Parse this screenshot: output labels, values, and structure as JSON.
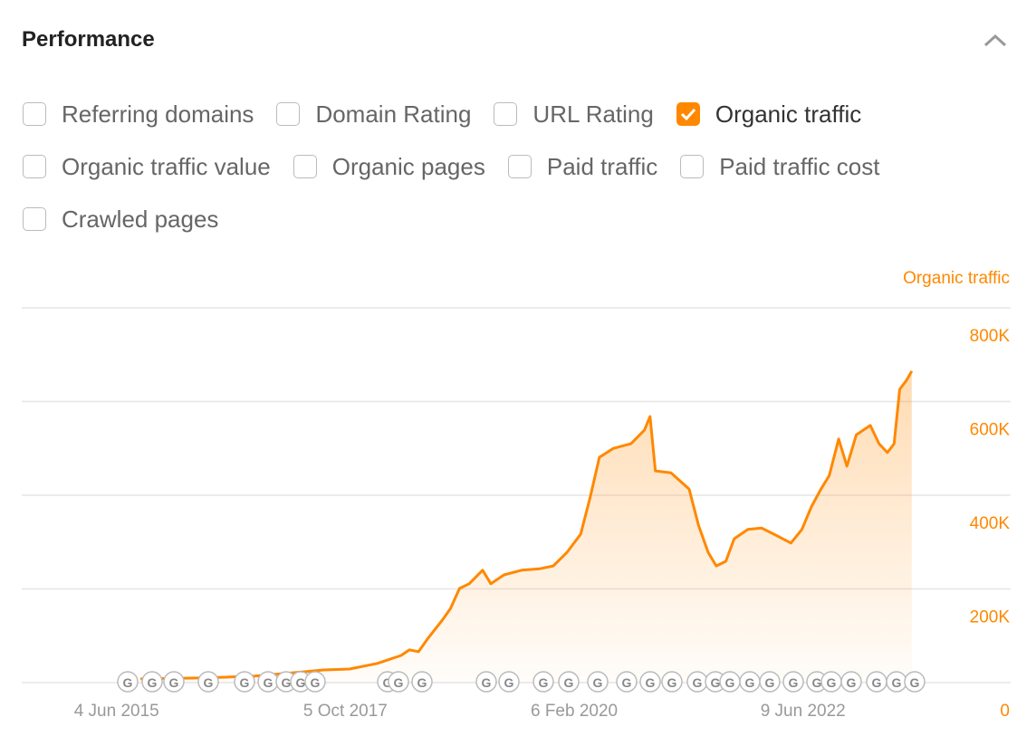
{
  "header": {
    "title": "Performance"
  },
  "checkboxes": [
    {
      "label": "Referring domains",
      "checked": false
    },
    {
      "label": "Domain Rating",
      "checked": false
    },
    {
      "label": "URL Rating",
      "checked": false
    },
    {
      "label": "Organic traffic",
      "checked": true
    },
    {
      "label": "Organic traffic value",
      "checked": false
    },
    {
      "label": "Organic pages",
      "checked": false
    },
    {
      "label": "Paid traffic",
      "checked": false
    },
    {
      "label": "Paid traffic cost",
      "checked": false
    },
    {
      "label": "Crawled pages",
      "checked": false
    }
  ],
  "update_marker_label": "G",
  "chart_data": {
    "type": "line",
    "y_axis_label": "Organic traffic",
    "color": "#ff8800",
    "grid": true,
    "x": [
      "2015-09-01",
      "2016-05-01",
      "2016-11-01",
      "2017-05-01",
      "2017-07-15",
      "2017-10-20",
      "2018-02-01",
      "2018-05-01",
      "2018-06-01",
      "2018-07-05",
      "2018-08-10",
      "2018-10-01",
      "2018-11-01",
      "2018-12-05",
      "2019-01-10",
      "2019-03-01",
      "2019-04-01",
      "2019-05-20",
      "2019-07-25",
      "2019-10-01",
      "2019-11-20",
      "2020-01-10",
      "2020-03-01",
      "2020-04-05",
      "2020-05-10",
      "2020-07-01",
      "2020-09-05",
      "2020-10-25",
      "2020-11-15",
      "2020-12-05",
      "2021-02-01",
      "2021-04-10",
      "2021-05-15",
      "2021-06-20",
      "2021-07-20",
      "2021-08-25",
      "2021-09-25",
      "2021-11-15",
      "2022-01-05",
      "2022-02-20",
      "2022-04-25",
      "2022-06-05",
      "2022-07-10",
      "2022-08-15",
      "2022-09-15",
      "2022-10-20",
      "2022-11-20",
      "2022-12-25",
      "2023-02-15",
      "2023-03-20",
      "2023-04-20",
      "2023-05-15",
      "2023-06-05",
      "2023-06-30",
      "2023-07-20"
    ],
    "series": [
      {
        "name": "Organic traffic",
        "color": "#ff8800",
        "values": [
          8000,
          10000,
          14000,
          23000,
          27000,
          29000,
          41000,
          58000,
          70000,
          66000,
          95000,
          133000,
          158000,
          201000,
          211000,
          240000,
          211000,
          230000,
          240000,
          243000,
          249000,
          278000,
          317000,
          394000,
          481000,
          500000,
          510000,
          539000,
          568000,
          452000,
          448000,
          413000,
          336000,
          278000,
          249000,
          259000,
          307000,
          327000,
          330000,
          317000,
          298000,
          327000,
          375000,
          413000,
          442000,
          520000,
          462000,
          529000,
          549000,
          510000,
          491000,
          510000,
          626000,
          645000,
          665000
        ]
      }
    ],
    "xlim": [
      "2014-06-15",
      "2024-07-23"
    ],
    "xticks": [
      {
        "value": "2015-06-04",
        "label": "4 Jun 2015"
      },
      {
        "value": "2017-10-05",
        "label": "5 Oct 2017"
      },
      {
        "value": "2020-02-06",
        "label": "6 Feb 2020"
      },
      {
        "value": "2022-06-09",
        "label": "9 Jun 2022"
      }
    ],
    "ylim": [
      0,
      800000
    ],
    "yticks": [
      0,
      {
        "value": 200000,
        "label": "200K"
      },
      {
        "value": 400000,
        "label": "400K"
      },
      {
        "value": 600000,
        "label": "600K"
      },
      {
        "value": 800000,
        "label": "800K"
      }
    ]
  }
}
